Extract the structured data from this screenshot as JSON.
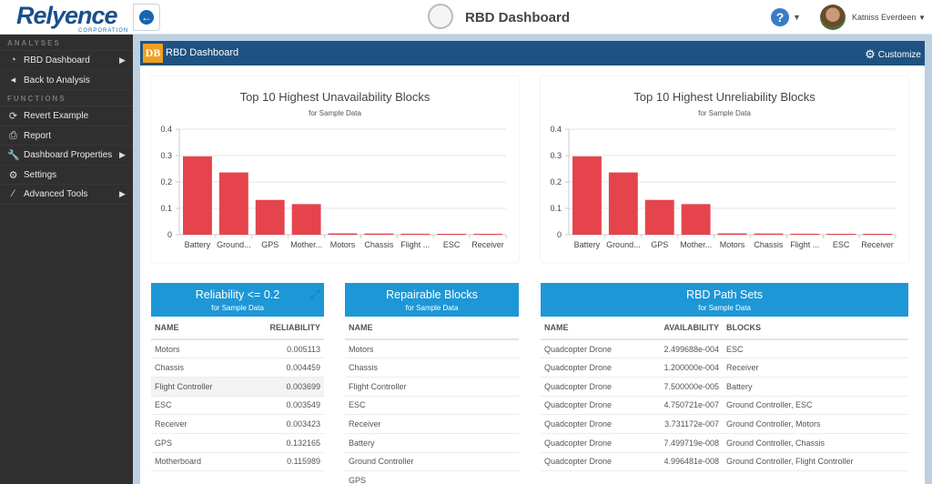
{
  "header": {
    "logo_text": "Relyence",
    "logo_sub": "CORPORATION",
    "title": "RBD Dashboard",
    "help": "?",
    "user": "Katniss Everdeen"
  },
  "sidebar": {
    "sections": [
      {
        "label": "ANALYSES",
        "items": [
          {
            "label": "RBD Dashboard",
            "icon": "dashboard-icon",
            "submenu": true
          },
          {
            "label": "Back to Analysis",
            "icon": "caret-left-icon",
            "submenu": false
          }
        ]
      },
      {
        "label": "FUNCTIONS",
        "items": [
          {
            "label": "Revert Example",
            "icon": "refresh-icon",
            "submenu": false
          },
          {
            "label": "Report",
            "icon": "print-icon",
            "submenu": false
          },
          {
            "label": "Dashboard Properties",
            "icon": "wrench-icon",
            "submenu": true
          },
          {
            "label": "Settings",
            "icon": "gear-icon",
            "submenu": false
          },
          {
            "label": "Advanced Tools",
            "icon": "magic-wand-icon",
            "submenu": true
          }
        ]
      }
    ]
  },
  "panel": {
    "badge": "DB",
    "title": "RBD Dashboard",
    "customize": "Customize"
  },
  "chart_data": [
    {
      "type": "bar",
      "title": "Top 10 Highest Unavailability Blocks",
      "subtitle": "for Sample Data",
      "categories": [
        "Battery",
        "Ground...",
        "GPS",
        "Mother...",
        "Motors",
        "Chassis",
        "Flight ...",
        "ESC",
        "Receiver"
      ],
      "values": [
        0.297,
        0.236,
        0.132,
        0.116,
        0.0051,
        0.0045,
        0.0037,
        0.0035,
        0.0034
      ],
      "ylim": [
        0,
        0.4
      ],
      "yticks": [
        "0",
        "0.1",
        "0.2",
        "0.3",
        "0.4"
      ],
      "grid": true,
      "color": "#e5444c"
    },
    {
      "type": "bar",
      "title": "Top 10 Highest Unreliability Blocks",
      "subtitle": "for Sample Data",
      "categories": [
        "Battery",
        "Ground...",
        "GPS",
        "Mother...",
        "Motors",
        "Chassis",
        "Flight ...",
        "ESC",
        "Receiver"
      ],
      "values": [
        0.297,
        0.236,
        0.132,
        0.116,
        0.0051,
        0.0045,
        0.0037,
        0.0035,
        0.0034
      ],
      "ylim": [
        0,
        0.4
      ],
      "yticks": [
        "0",
        "0.1",
        "0.2",
        "0.3",
        "0.4"
      ],
      "grid": true,
      "color": "#e5444c"
    }
  ],
  "tables": {
    "reliability": {
      "title": "Reliability <= 0.2",
      "subtitle": "for Sample Data",
      "columns": [
        "NAME",
        "RELIABILITY"
      ],
      "rows": [
        [
          "Motors",
          "0.005113"
        ],
        [
          "Chassis",
          "0.004459"
        ],
        [
          "Flight Controller",
          "0.003699"
        ],
        [
          "ESC",
          "0.003549"
        ],
        [
          "Receiver",
          "0.003423"
        ],
        [
          "GPS",
          "0.132165"
        ],
        [
          "Motherboard",
          "0.115989"
        ]
      ]
    },
    "repairable": {
      "title": "Repairable Blocks",
      "subtitle": "for Sample Data",
      "columns": [
        "NAME"
      ],
      "rows": [
        [
          "Motors"
        ],
        [
          "Chassis"
        ],
        [
          "Flight Controller"
        ],
        [
          "ESC"
        ],
        [
          "Receiver"
        ],
        [
          "Battery"
        ],
        [
          "Ground Controller"
        ],
        [
          "GPS"
        ]
      ]
    },
    "pathsets": {
      "title": "RBD Path Sets",
      "subtitle": "for Sample Data",
      "columns": [
        "NAME",
        "AVAILABILITY",
        "BLOCKS"
      ],
      "rows": [
        [
          "Quadcopter Drone",
          "2.499688e-004",
          "ESC"
        ],
        [
          "Quadcopter Drone",
          "1.200000e-004",
          "Receiver"
        ],
        [
          "Quadcopter Drone",
          "7.500000e-005",
          "Battery"
        ],
        [
          "Quadcopter Drone",
          "4.750721e-007",
          "Ground Controller, ESC"
        ],
        [
          "Quadcopter Drone",
          "3.731172e-007",
          "Ground Controller, Motors"
        ],
        [
          "Quadcopter Drone",
          "7.499719e-008",
          "Ground Controller, Chassis"
        ],
        [
          "Quadcopter Drone",
          "4.996481e-008",
          "Ground Controller, Flight Controller"
        ]
      ]
    }
  }
}
